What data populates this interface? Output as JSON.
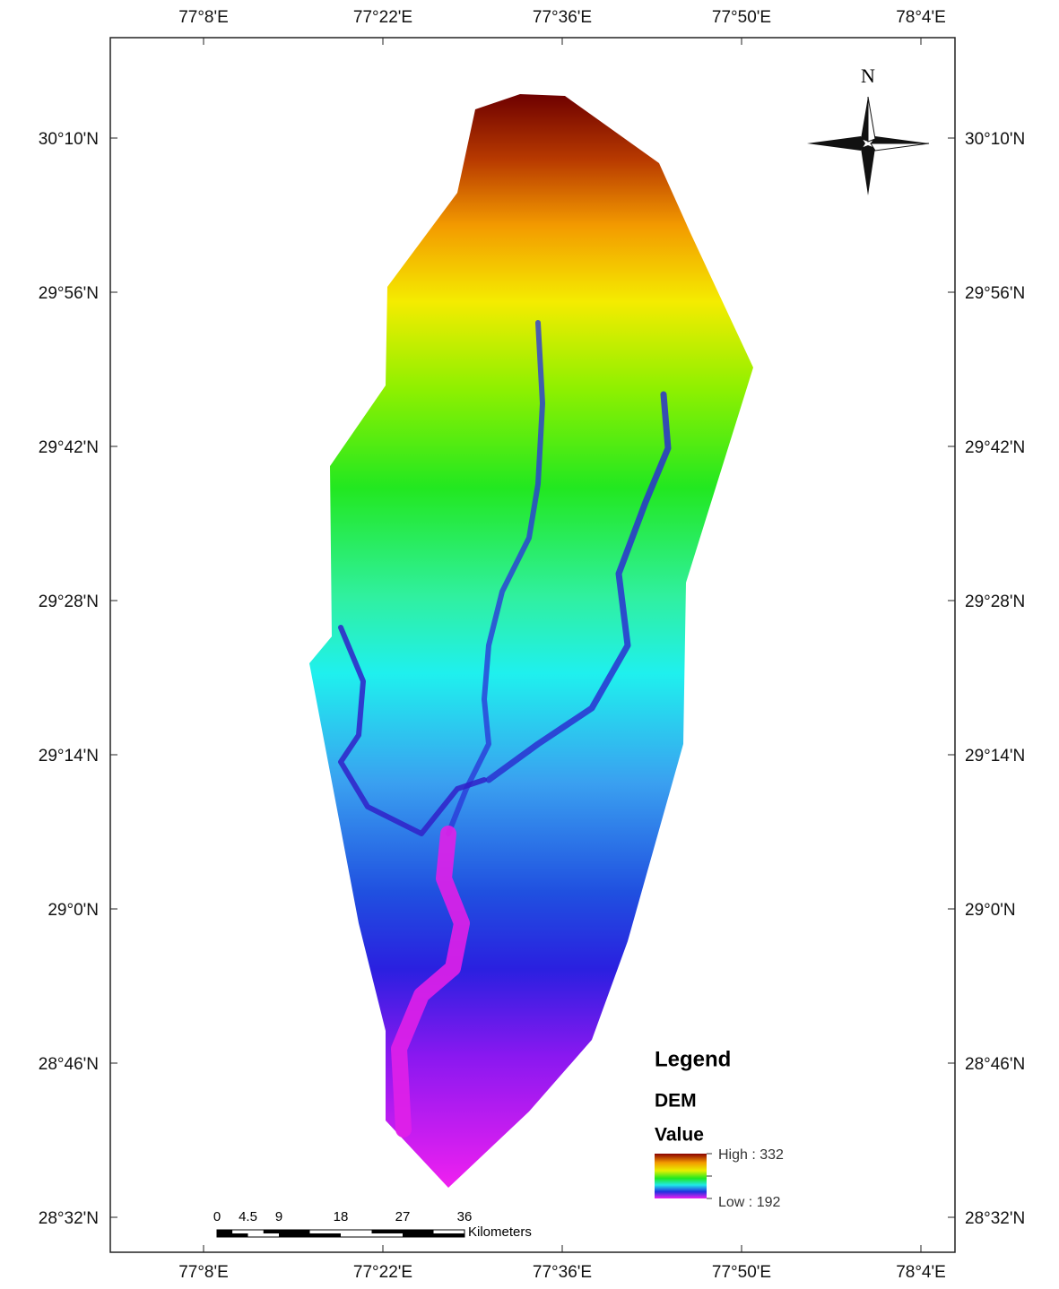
{
  "map": {
    "lon_labels": [
      "77°8'E",
      "77°22'E",
      "77°36'E",
      "77°50'E",
      "78°4'E"
    ],
    "lat_labels": [
      "30°10'N",
      "29°56'N",
      "29°42'N",
      "29°28'N",
      "29°14'N",
      "29°0'N",
      "28°46'N",
      "28°32'N"
    ],
    "north": "N",
    "legend": {
      "title": "Legend",
      "layer": "DEM",
      "field": "Value",
      "high": "High : 332",
      "low": "Low : 192"
    },
    "scale_bar": {
      "ticks": [
        0,
        4.5,
        9,
        18,
        27,
        36
      ],
      "unit": "Kilometers"
    }
  }
}
